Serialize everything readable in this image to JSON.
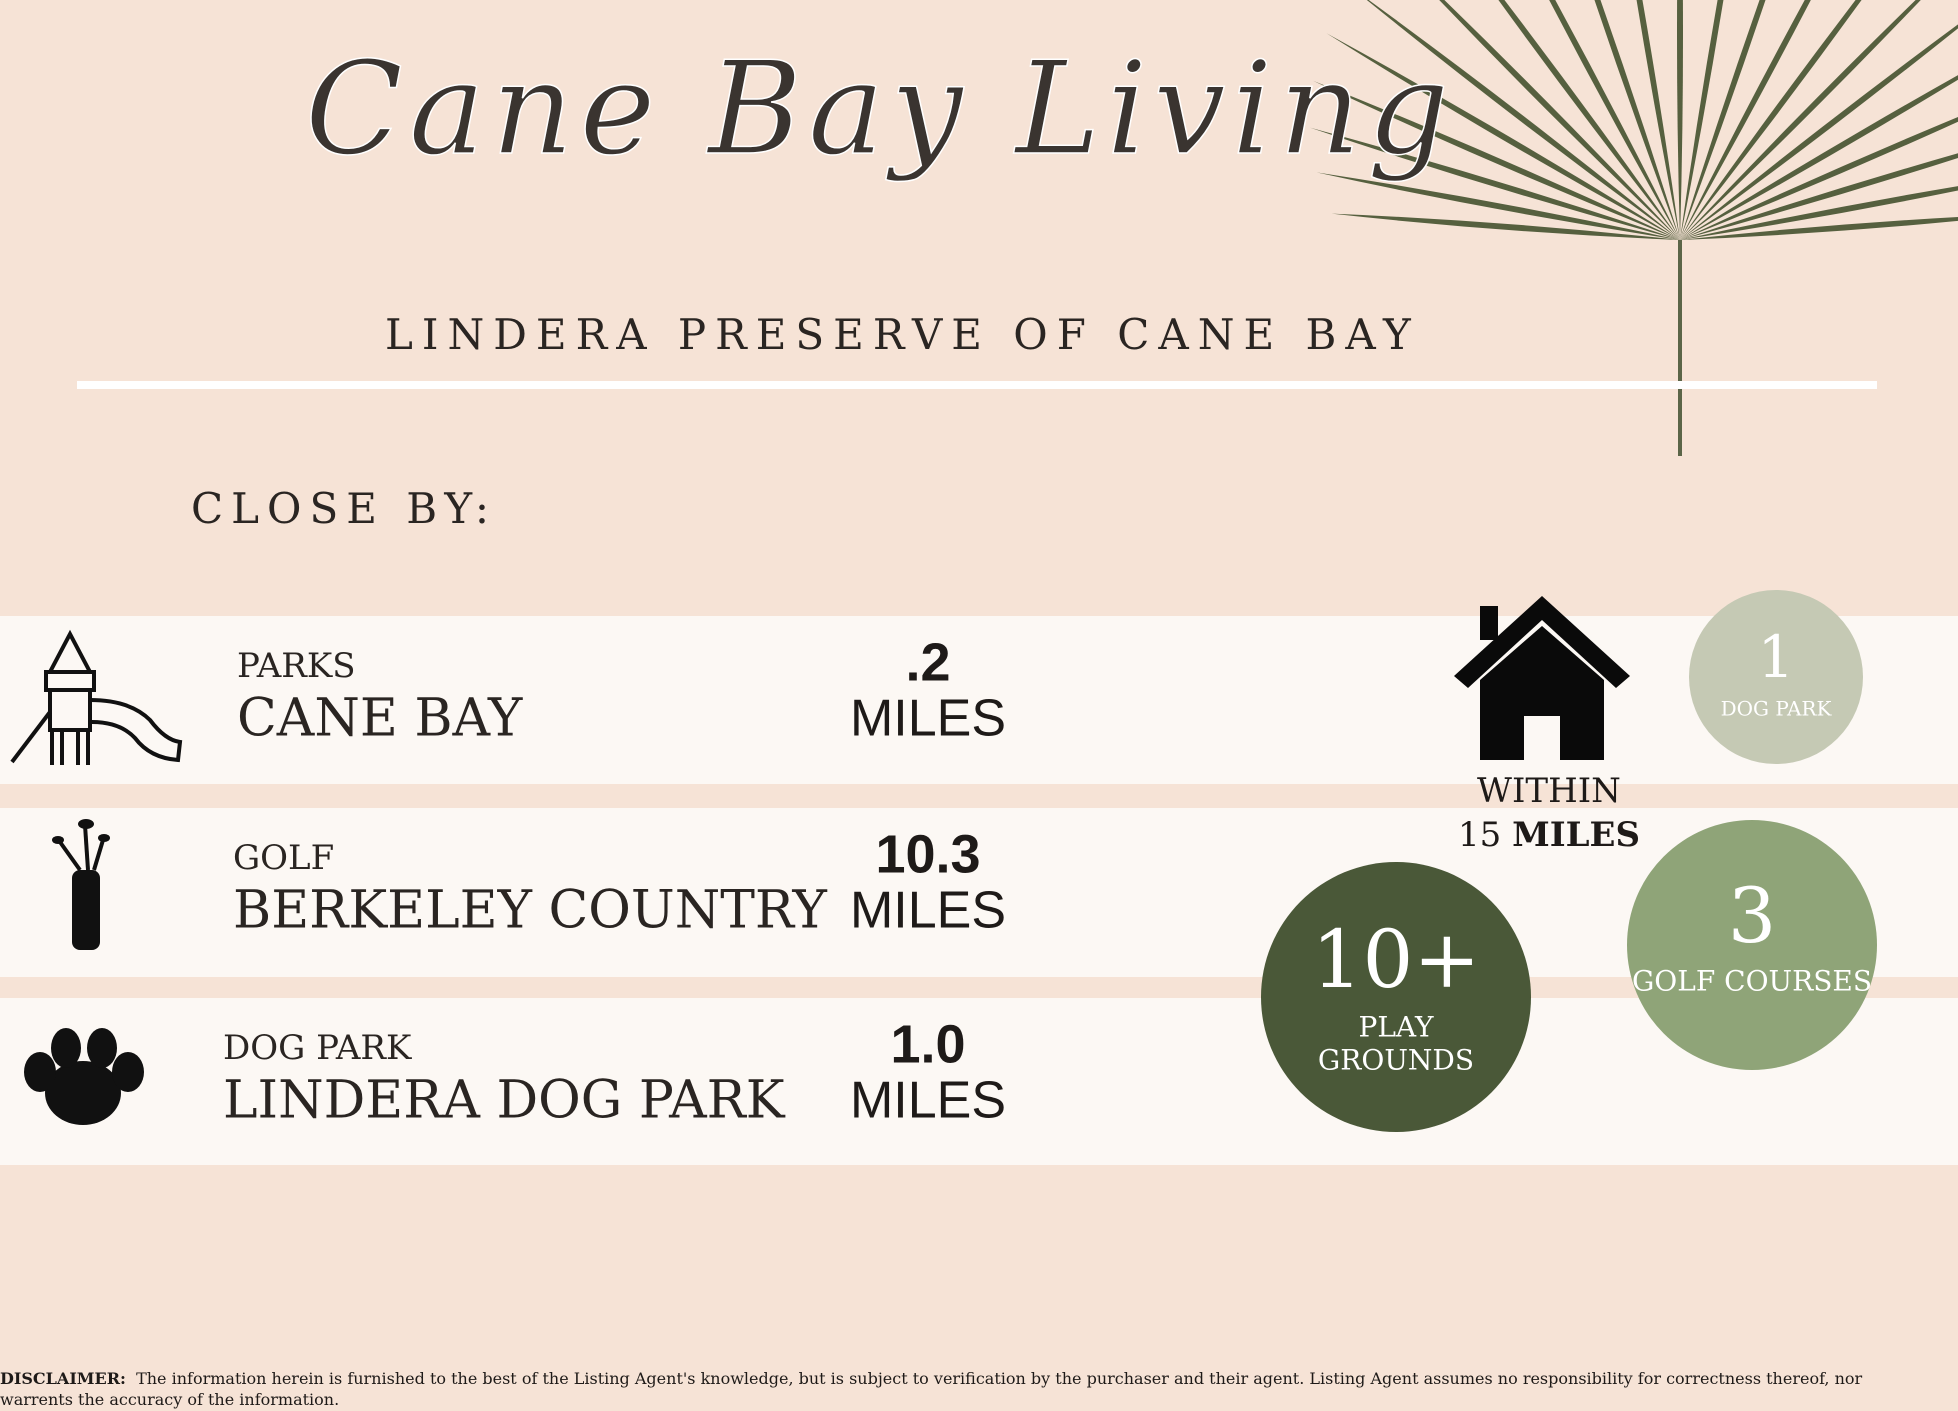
{
  "title": "Cane Bay Living",
  "subtitle": "LINDERA PRESERVE OF CANE BAY",
  "section": "CLOSE BY:",
  "items": [
    {
      "category": "PARKS",
      "name": "CANE BAY",
      "distance": ".2",
      "unit": "MILES"
    },
    {
      "category": "GOLF",
      "name": "BERKELEY COUNTRY",
      "distance": "10.3",
      "unit": "MILES"
    },
    {
      "category": "DOG PARK",
      "name": "LINDERA DOG PARK",
      "distance": "1.0",
      "unit": "MILES"
    }
  ],
  "house": {
    "line1": "WITHIN",
    "number": "15",
    "unit": "MILES"
  },
  "stats": [
    {
      "value": "1",
      "label": "DOG PARK"
    },
    {
      "value": "3",
      "label": "GOLF COURSES"
    },
    {
      "value": "10+",
      "label": "PLAY",
      "label2": "GROUNDS"
    }
  ],
  "disclaimer": {
    "label": "DISCLAIMER:",
    "text": "The information herein is furnished to the best of the Listing Agent's knowledge, but is subject to verification by the purchaser and their agent. Listing Agent assumes no responsibility for correctness thereof, nor warrents the accuracy of the information."
  }
}
